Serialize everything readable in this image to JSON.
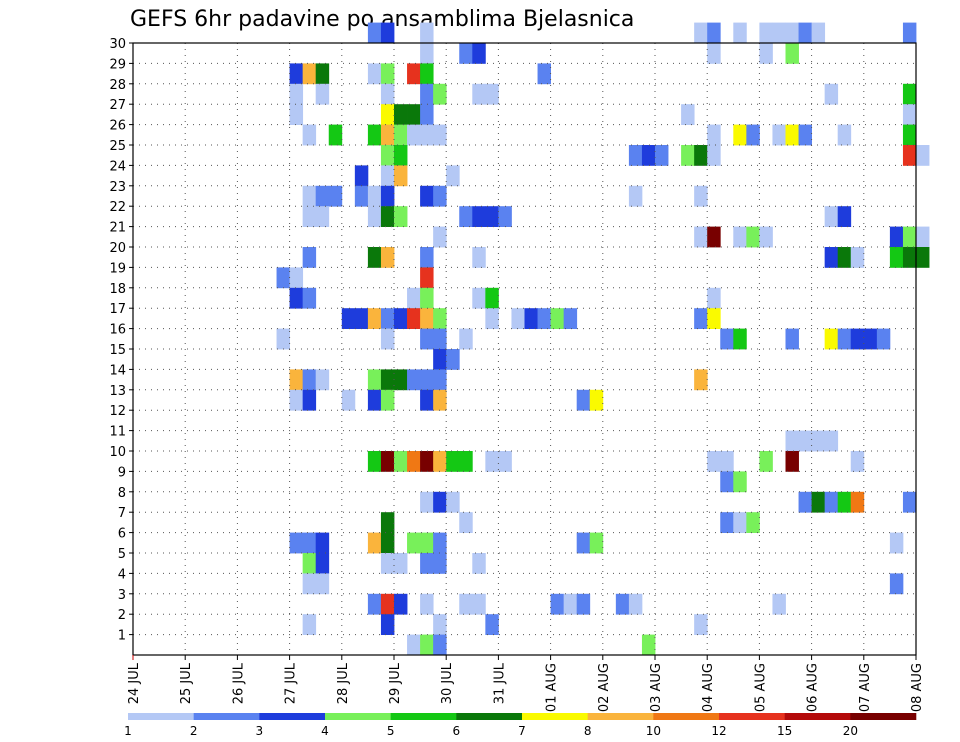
{
  "chart_data": {
    "type": "heatmap",
    "title": "GEFS 6hr padavine po ansamblima Bjelasnica",
    "xlabel": "",
    "ylabel": "",
    "x_tick_labels": [
      "24 JUL",
      "25 JUL",
      "26 JUL",
      "27 JUL",
      "28 JUL",
      "29 JUL",
      "30 JUL",
      "31 JUL",
      "01 AUG",
      "02 AUG",
      "03 AUG",
      "04 AUG",
      "05 AUG",
      "06 AUG",
      "07 AUG",
      "08 AUG"
    ],
    "y_tick_labels": [
      "1",
      "2",
      "3",
      "4",
      "5",
      "6",
      "7",
      "8",
      "9",
      "10",
      "11",
      "12",
      "13",
      "14",
      "15",
      "16",
      "17",
      "18",
      "19",
      "20",
      "21",
      "22",
      "23",
      "24",
      "25",
      "26",
      "27",
      "28",
      "29",
      "30"
    ],
    "x_range_steps": [
      0,
      60
    ],
    "y_range_members": [
      0,
      30
    ],
    "grid": true,
    "colorbar": {
      "labels": [
        "1",
        "2",
        "3",
        "4",
        "5",
        "6",
        "7",
        "8",
        "10",
        "12",
        "15",
        "20"
      ],
      "colors": [
        "#b4c8f5",
        "#5a82f0",
        "#1e3cdc",
        "#78f05a",
        "#14c814",
        "#0a780a",
        "#fafa00",
        "#fab43c",
        "#f07814",
        "#e6321e",
        "#b40a0a",
        "#780000"
      ]
    },
    "cells": [
      [
        18,
        30,
        2
      ],
      [
        19,
        30,
        3
      ],
      [
        22,
        30,
        1
      ],
      [
        43,
        30,
        1
      ],
      [
        44,
        30,
        2
      ],
      [
        46,
        30,
        1
      ],
      [
        48,
        30,
        1
      ],
      [
        49,
        30,
        1
      ],
      [
        50,
        30,
        1
      ],
      [
        51,
        30,
        2
      ],
      [
        52,
        30,
        1
      ],
      [
        59,
        30,
        2
      ],
      [
        22,
        29,
        1
      ],
      [
        25,
        29,
        2
      ],
      [
        26,
        29,
        3
      ],
      [
        44,
        29,
        1
      ],
      [
        48,
        29,
        1
      ],
      [
        50,
        29,
        4
      ],
      [
        12,
        28,
        3
      ],
      [
        13,
        28,
        8
      ],
      [
        14,
        28,
        6
      ],
      [
        18,
        28,
        1
      ],
      [
        19,
        28,
        4
      ],
      [
        21,
        28,
        10
      ],
      [
        22,
        28,
        5
      ],
      [
        31,
        28,
        2
      ],
      [
        12,
        27,
        1
      ],
      [
        14,
        27,
        1
      ],
      [
        19,
        27,
        1
      ],
      [
        22,
        27,
        2
      ],
      [
        23,
        27,
        4
      ],
      [
        26,
        27,
        1
      ],
      [
        27,
        27,
        1
      ],
      [
        53,
        27,
        1
      ],
      [
        59,
        27,
        5
      ],
      [
        12,
        26,
        1
      ],
      [
        19,
        26,
        7
      ],
      [
        20,
        26,
        6
      ],
      [
        21,
        26,
        6
      ],
      [
        22,
        26,
        2
      ],
      [
        42,
        26,
        1
      ],
      [
        59,
        26,
        1
      ],
      [
        13,
        25,
        1
      ],
      [
        15,
        25,
        5
      ],
      [
        18,
        25,
        5
      ],
      [
        19,
        25,
        8
      ],
      [
        20,
        25,
        4
      ],
      [
        21,
        25,
        1
      ],
      [
        22,
        25,
        1
      ],
      [
        23,
        25,
        1
      ],
      [
        44,
        25,
        1
      ],
      [
        46,
        25,
        7
      ],
      [
        47,
        25,
        2
      ],
      [
        49,
        25,
        1
      ],
      [
        50,
        25,
        7
      ],
      [
        51,
        25,
        2
      ],
      [
        54,
        25,
        1
      ],
      [
        59,
        25,
        5
      ],
      [
        19,
        24,
        4
      ],
      [
        20,
        24,
        5
      ],
      [
        38,
        24,
        2
      ],
      [
        39,
        24,
        3
      ],
      [
        40,
        24,
        2
      ],
      [
        42,
        24,
        4
      ],
      [
        43,
        24,
        6
      ],
      [
        44,
        24,
        1
      ],
      [
        59,
        24,
        10
      ],
      [
        60,
        24,
        1
      ],
      [
        17,
        23,
        3
      ],
      [
        19,
        23,
        1
      ],
      [
        20,
        23,
        8
      ],
      [
        24,
        23,
        1
      ],
      [
        13,
        22,
        1
      ],
      [
        14,
        22,
        2
      ],
      [
        15,
        22,
        2
      ],
      [
        17,
        22,
        2
      ],
      [
        18,
        22,
        1
      ],
      [
        19,
        22,
        3
      ],
      [
        22,
        22,
        3
      ],
      [
        23,
        22,
        2
      ],
      [
        38,
        22,
        1
      ],
      [
        43,
        22,
        1
      ],
      [
        13,
        21,
        1
      ],
      [
        14,
        21,
        1
      ],
      [
        18,
        21,
        1
      ],
      [
        19,
        21,
        6
      ],
      [
        20,
        21,
        4
      ],
      [
        25,
        21,
        2
      ],
      [
        26,
        21,
        3
      ],
      [
        27,
        21,
        3
      ],
      [
        28,
        21,
        2
      ],
      [
        53,
        21,
        1
      ],
      [
        54,
        21,
        3
      ],
      [
        23,
        20,
        1
      ],
      [
        43,
        20,
        1
      ],
      [
        44,
        20,
        12
      ],
      [
        46,
        20,
        1
      ],
      [
        47,
        20,
        4
      ],
      [
        48,
        20,
        1
      ],
      [
        58,
        20,
        3
      ],
      [
        59,
        20,
        4
      ],
      [
        60,
        20,
        1
      ],
      [
        13,
        19,
        2
      ],
      [
        18,
        19,
        6
      ],
      [
        19,
        19,
        8
      ],
      [
        22,
        19,
        2
      ],
      [
        26,
        19,
        1
      ],
      [
        53,
        19,
        3
      ],
      [
        54,
        19,
        6
      ],
      [
        55,
        19,
        1
      ],
      [
        58,
        19,
        5
      ],
      [
        59,
        19,
        6
      ],
      [
        60,
        19,
        6
      ],
      [
        11,
        18,
        2
      ],
      [
        12,
        18,
        1
      ],
      [
        22,
        18,
        10
      ],
      [
        12,
        17,
        3
      ],
      [
        13,
        17,
        2
      ],
      [
        21,
        17,
        1
      ],
      [
        22,
        17,
        4
      ],
      [
        26,
        17,
        1
      ],
      [
        27,
        17,
        5
      ],
      [
        44,
        17,
        1
      ],
      [
        16,
        16,
        3
      ],
      [
        17,
        16,
        3
      ],
      [
        18,
        16,
        8
      ],
      [
        19,
        16,
        2
      ],
      [
        20,
        16,
        3
      ],
      [
        21,
        16,
        10
      ],
      [
        22,
        16,
        8
      ],
      [
        23,
        16,
        4
      ],
      [
        27,
        16,
        1
      ],
      [
        29,
        16,
        1
      ],
      [
        30,
        16,
        3
      ],
      [
        31,
        16,
        2
      ],
      [
        32,
        16,
        4
      ],
      [
        33,
        16,
        2
      ],
      [
        43,
        16,
        2
      ],
      [
        44,
        16,
        7
      ],
      [
        11,
        15,
        1
      ],
      [
        19,
        15,
        1
      ],
      [
        22,
        15,
        2
      ],
      [
        23,
        15,
        2
      ],
      [
        25,
        15,
        1
      ],
      [
        45,
        15,
        2
      ],
      [
        46,
        15,
        5
      ],
      [
        50,
        15,
        2
      ],
      [
        53,
        15,
        7
      ],
      [
        54,
        15,
        2
      ],
      [
        55,
        15,
        3
      ],
      [
        56,
        15,
        3
      ],
      [
        57,
        15,
        2
      ],
      [
        23,
        14,
        3
      ],
      [
        24,
        14,
        2
      ],
      [
        12,
        13,
        8
      ],
      [
        13,
        13,
        2
      ],
      [
        14,
        13,
        1
      ],
      [
        18,
        13,
        4
      ],
      [
        19,
        13,
        6
      ],
      [
        20,
        13,
        6
      ],
      [
        21,
        13,
        2
      ],
      [
        22,
        13,
        2
      ],
      [
        23,
        13,
        2
      ],
      [
        43,
        13,
        8
      ],
      [
        12,
        12,
        1
      ],
      [
        13,
        12,
        3
      ],
      [
        16,
        12,
        1
      ],
      [
        18,
        12,
        3
      ],
      [
        19,
        12,
        4
      ],
      [
        22,
        12,
        3
      ],
      [
        23,
        12,
        8
      ],
      [
        34,
        12,
        2
      ],
      [
        35,
        12,
        7
      ],
      [
        50,
        10,
        1
      ],
      [
        51,
        10,
        1
      ],
      [
        52,
        10,
        1
      ],
      [
        53,
        10,
        1
      ],
      [
        18,
        9,
        5
      ],
      [
        19,
        9,
        12
      ],
      [
        20,
        9,
        4
      ],
      [
        21,
        9,
        9
      ],
      [
        22,
        9,
        12
      ],
      [
        23,
        9,
        8
      ],
      [
        24,
        9,
        5
      ],
      [
        25,
        9,
        5
      ],
      [
        27,
        9,
        1
      ],
      [
        28,
        9,
        1
      ],
      [
        44,
        9,
        1
      ],
      [
        45,
        9,
        1
      ],
      [
        48,
        9,
        4
      ],
      [
        50,
        9,
        12
      ],
      [
        55,
        9,
        1
      ],
      [
        45,
        8,
        2
      ],
      [
        46,
        8,
        4
      ],
      [
        22,
        7,
        1
      ],
      [
        23,
        7,
        3
      ],
      [
        24,
        7,
        1
      ],
      [
        51,
        7,
        2
      ],
      [
        52,
        7,
        6
      ],
      [
        53,
        7,
        2
      ],
      [
        54,
        7,
        5
      ],
      [
        55,
        7,
        9
      ],
      [
        59,
        7,
        2
      ],
      [
        19,
        6,
        6
      ],
      [
        25,
        6,
        1
      ],
      [
        45,
        6,
        2
      ],
      [
        46,
        6,
        1
      ],
      [
        47,
        6,
        4
      ],
      [
        12,
        5,
        2
      ],
      [
        13,
        5,
        2
      ],
      [
        14,
        5,
        3
      ],
      [
        18,
        5,
        8
      ],
      [
        19,
        5,
        6
      ],
      [
        21,
        5,
        4
      ],
      [
        22,
        5,
        4
      ],
      [
        23,
        5,
        2
      ],
      [
        34,
        5,
        2
      ],
      [
        35,
        5,
        4
      ],
      [
        58,
        5,
        1
      ],
      [
        13,
        4,
        4
      ],
      [
        14,
        4,
        3
      ],
      [
        19,
        4,
        1
      ],
      [
        20,
        4,
        1
      ],
      [
        22,
        4,
        2
      ],
      [
        23,
        4,
        2
      ],
      [
        26,
        4,
        1
      ],
      [
        13,
        3,
        1
      ],
      [
        14,
        3,
        1
      ],
      [
        58,
        3,
        2
      ],
      [
        18,
        2,
        2
      ],
      [
        19,
        2,
        10
      ],
      [
        20,
        2,
        3
      ],
      [
        22,
        2,
        1
      ],
      [
        25,
        2,
        1
      ],
      [
        26,
        2,
        1
      ],
      [
        32,
        2,
        2
      ],
      [
        33,
        2,
        1
      ],
      [
        34,
        2,
        2
      ],
      [
        37,
        2,
        2
      ],
      [
        38,
        2,
        1
      ],
      [
        49,
        2,
        1
      ],
      [
        13,
        1,
        1
      ],
      [
        19,
        1,
        3
      ],
      [
        23,
        1,
        1
      ],
      [
        27,
        1,
        2
      ],
      [
        43,
        1,
        1
      ],
      [
        21,
        0,
        1
      ],
      [
        22,
        0,
        4
      ],
      [
        23,
        0,
        2
      ],
      [
        39,
        0,
        4
      ]
    ]
  }
}
